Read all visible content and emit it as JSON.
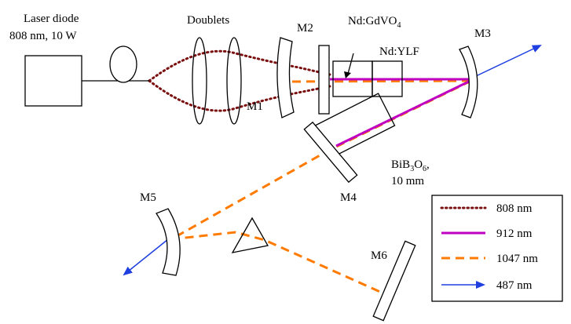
{
  "labels": {
    "laser_line1": "Laser diode",
    "laser_line2": "808 nm, 10 W",
    "doublets": "Doublets",
    "m1": "M1",
    "m2": "M2",
    "m3": "M3",
    "m4": "M4",
    "m5": "M5",
    "m6": "M6",
    "gdvo4_main": "Nd:GdVO",
    "gdvo4_sub": "4",
    "ylf": "Nd:YLF",
    "bibo_a": "BiB",
    "bibo_a_sub": "3",
    "bibo_b": "O",
    "bibo_b_sub": "6",
    "bibo_c": ",",
    "bibo_length": "10 mm"
  },
  "legend": {
    "items": [
      {
        "label": "808 nm",
        "style": "dotted",
        "color": "#7a1010"
      },
      {
        "label": "912 nm",
        "style": "solid",
        "color": "#c000c0"
      },
      {
        "label": "1047 nm",
        "style": "dashed",
        "color": "#ff7a00"
      },
      {
        "label": "487 nm",
        "style": "arrow",
        "color": "#1f3fe0"
      }
    ]
  }
}
